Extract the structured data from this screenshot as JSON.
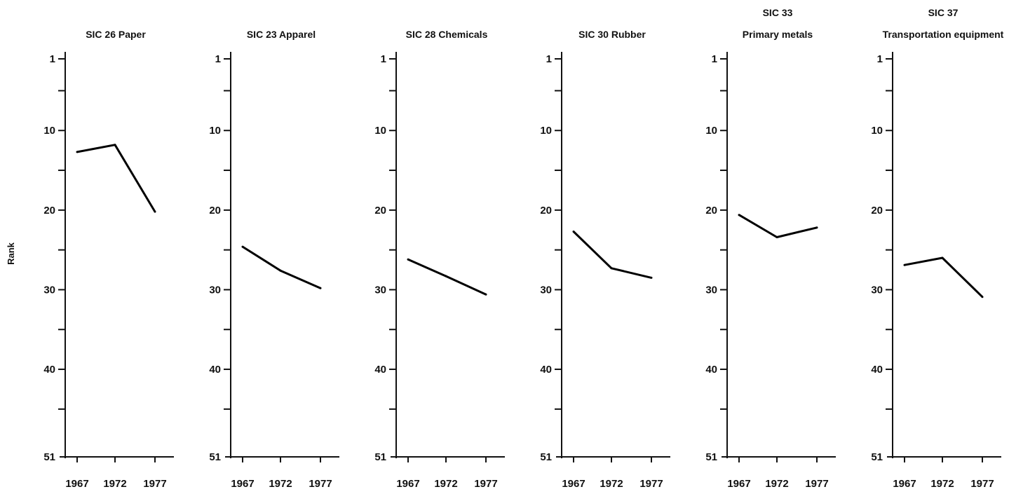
{
  "y_axis_label": "Rank",
  "chart_data": [
    {
      "type": "line",
      "title": "SIC 26  Paper",
      "subtitle": "",
      "x": [
        1967,
        1972,
        1977
      ],
      "x_tick_labels": [
        "1967",
        "1972",
        "1977"
      ],
      "y_tick_labels": [
        "1",
        "10",
        "20",
        "30",
        "40",
        "51"
      ],
      "ylabel": "Rank",
      "ylim": [
        1,
        51
      ],
      "y_inverted": true,
      "series": [
        {
          "values": [
            12.7,
            11.8,
            20.2
          ]
        }
      ]
    },
    {
      "type": "line",
      "title": "SIC 23  Apparel",
      "subtitle": "",
      "x": [
        1967,
        1972,
        1977
      ],
      "x_tick_labels": [
        "1967",
        "1972",
        "1977"
      ],
      "y_tick_labels": [
        "1",
        "10",
        "20",
        "30",
        "40",
        "51"
      ],
      "ylabel": "",
      "ylim": [
        1,
        51
      ],
      "y_inverted": true,
      "series": [
        {
          "values": [
            24.6,
            27.6,
            29.8
          ]
        }
      ]
    },
    {
      "type": "line",
      "title": "SIC 28  Chemicals",
      "subtitle": "",
      "x": [
        1967,
        1972,
        1977
      ],
      "x_tick_labels": [
        "1967",
        "1972",
        "1977"
      ],
      "y_tick_labels": [
        "1",
        "10",
        "20",
        "30",
        "40",
        "51"
      ],
      "ylabel": "",
      "ylim": [
        1,
        51
      ],
      "y_inverted": true,
      "series": [
        {
          "values": [
            26.2,
            28.3,
            30.6
          ]
        }
      ]
    },
    {
      "type": "line",
      "title": "SIC 30  Rubber",
      "subtitle": "",
      "x": [
        1967,
        1972,
        1977
      ],
      "x_tick_labels": [
        "1967",
        "1972",
        "1977"
      ],
      "y_tick_labels": [
        "1",
        "10",
        "20",
        "30",
        "40",
        "51"
      ],
      "ylabel": "",
      "ylim": [
        1,
        51
      ],
      "y_inverted": true,
      "series": [
        {
          "values": [
            22.7,
            27.3,
            28.5
          ]
        }
      ]
    },
    {
      "type": "line",
      "title": "SIC 33",
      "subtitle": "Primary metals",
      "x": [
        1967,
        1972,
        1977
      ],
      "x_tick_labels": [
        "1967",
        "1972",
        "1977"
      ],
      "y_tick_labels": [
        "1",
        "10",
        "20",
        "30",
        "40",
        "51"
      ],
      "ylabel": "",
      "ylim": [
        1,
        51
      ],
      "y_inverted": true,
      "series": [
        {
          "values": [
            20.6,
            23.4,
            22.2
          ]
        }
      ]
    },
    {
      "type": "line",
      "title": "SIC 37",
      "subtitle": "Transportation equipment",
      "x": [
        1967,
        1972,
        1977
      ],
      "x_tick_labels": [
        "1967",
        "1972",
        "1977"
      ],
      "y_tick_labels": [
        "1",
        "10",
        "20",
        "30",
        "40",
        "51"
      ],
      "ylabel": "",
      "ylim": [
        1,
        51
      ],
      "y_inverted": true,
      "series": [
        {
          "values": [
            26.9,
            26.0,
            30.9
          ]
        }
      ]
    }
  ]
}
